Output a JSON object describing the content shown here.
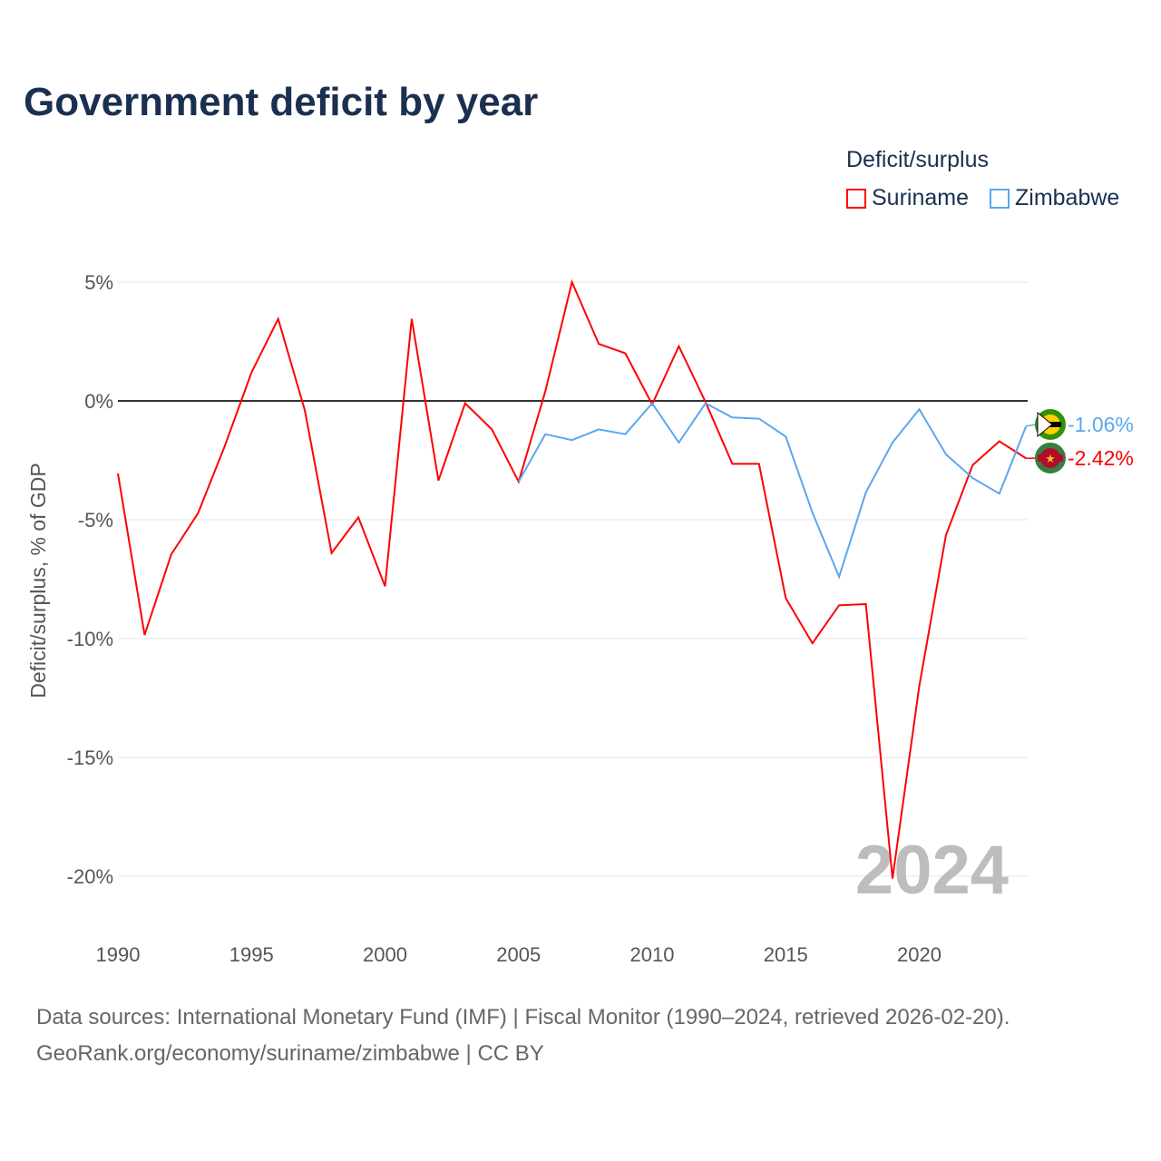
{
  "chart_data": {
    "type": "line",
    "title": "Government deficit by year",
    "ylabel": "Deficit/surplus, % of GDP",
    "xlabel": "",
    "xlim": [
      1990,
      2024
    ],
    "ylim": [
      -20,
      5
    ],
    "x_ticks": [
      "1990",
      "1995",
      "2000",
      "2005",
      "2010",
      "2015",
      "2020"
    ],
    "y_ticks": [
      "5%",
      "0%",
      "-5%",
      "-10%",
      "-15%",
      "-20%"
    ],
    "y_tick_values": [
      5,
      0,
      -5,
      -10,
      -15,
      -20
    ],
    "x_tick_values": [
      1990,
      1995,
      2000,
      2005,
      2010,
      2015,
      2020
    ],
    "legend_title": "Deficit/surplus",
    "legend_position": "top-right",
    "watermark_year": "2024",
    "series": [
      {
        "name": "Suriname",
        "color": "#ff0000",
        "start_year": 1990,
        "end_label": "-2.42%",
        "values": [
          -3.05,
          -9.85,
          -6.45,
          -4.73,
          -1.9,
          1.2,
          3.45,
          -0.4,
          -6.4,
          -4.9,
          -7.8,
          3.45,
          -3.35,
          -0.1,
          -1.2,
          -3.4,
          0.4,
          5.0,
          2.4,
          2.0,
          -0.15,
          2.3,
          -0.05,
          -2.65,
          -2.65,
          -8.3,
          -10.2,
          -8.6,
          -8.55,
          -20.1,
          -12.0,
          -5.65,
          -2.7,
          -1.7,
          -2.42
        ]
      },
      {
        "name": "Zimbabwe",
        "color": "#5aa7f0",
        "start_year": 2005,
        "end_label": "-1.06%",
        "values": [
          -3.4,
          -1.4,
          -1.65,
          -1.2,
          -1.4,
          -0.1,
          -1.75,
          -0.1,
          -0.7,
          -0.75,
          -1.5,
          -4.7,
          -7.4,
          -3.85,
          -1.75,
          -0.35,
          -2.25,
          -3.25,
          -3.9,
          -1.06
        ]
      }
    ]
  },
  "footer": {
    "line1": "Data sources: International Monetary Fund (IMF) | Fiscal Monitor (1990–2024, retrieved 2026-02-20).",
    "line2": "GeoRank.org/economy/suriname/zimbabwe | CC BY"
  }
}
